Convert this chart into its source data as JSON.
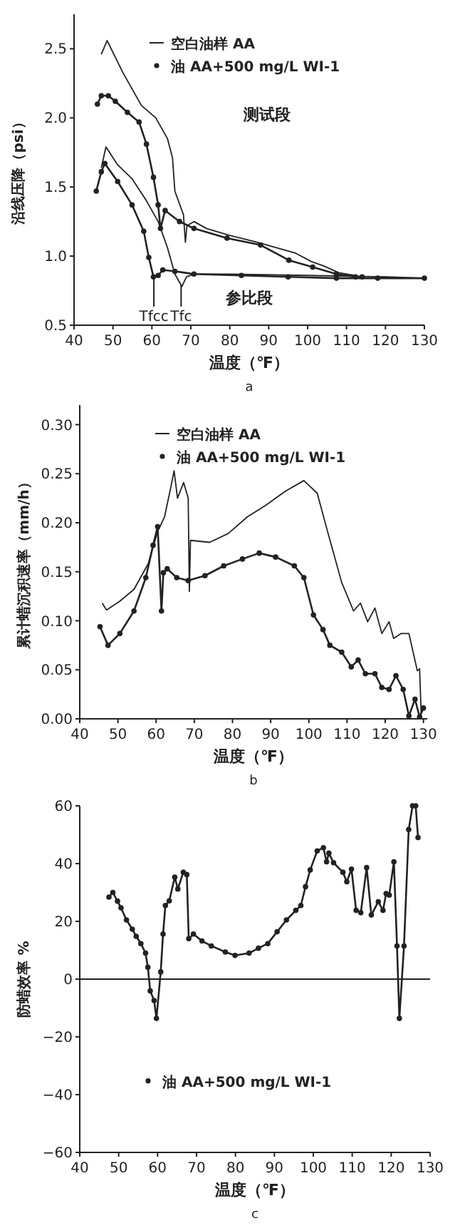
{
  "chart_data": [
    {
      "type": "line",
      "xlabel": "温度（℉）",
      "ylabel": "沿线压降（psi）",
      "legend": "top",
      "grid": false,
      "xlim": [
        40,
        130
      ],
      "ylim": [
        0.5,
        2.75
      ],
      "xticks": [
        40,
        50,
        60,
        70,
        80,
        90,
        100,
        110,
        120,
        130
      ],
      "yticks": [
        {
          "value": 0.5,
          "label": "0.5"
        },
        {
          "value": 1,
          "label": "1.0"
        },
        {
          "value": 1.5,
          "label": "1.5"
        },
        {
          "value": 2,
          "label": "2.0"
        },
        {
          "value": 2.5,
          "label": "2.5"
        }
      ],
      "annotations": [
        "测试段",
        "参比段",
        "a"
      ],
      "ref_lines": [
        {
          "axis": "x",
          "value": 60.5,
          "label": "Tfcc"
        },
        {
          "axis": "x",
          "value": 67.5,
          "label": "Tfc"
        }
      ],
      "series": [
        {
          "name": "空白油样 AA",
          "color": "#222222",
          "marker": "none",
          "x": [
            47,
            48.5,
            52.5,
            57.3,
            61,
            64,
            65.3,
            65.9,
            68.1,
            68.6,
            69,
            70.8,
            74,
            80,
            87,
            92,
            97,
            101,
            104,
            108,
            112
          ],
          "values": [
            2.46,
            2.56,
            2.33,
            2.09,
            2,
            1.85,
            1.71,
            1.47,
            1.3,
            1.1,
            1.22,
            1.25,
            1.2,
            1.15,
            1.1,
            1.06,
            1.02,
            0.96,
            0.93,
            0.88,
            0.86
          ]
        },
        {
          "name": "油 AA+500 mg/L WI-1",
          "color": "#222222",
          "marker": "circle",
          "x": [
            46,
            47,
            48.8,
            50.6,
            53.7,
            56.7,
            58.6,
            60.4,
            61.6,
            62.2,
            63.4,
            67.1,
            70.8,
            79.3,
            87.9,
            95.2,
            101.3,
            107.4,
            112.3,
            114
          ],
          "values": [
            2.1,
            2.16,
            2.16,
            2.12,
            2.04,
            1.97,
            1.81,
            1.57,
            1.37,
            1.2,
            1.33,
            1.25,
            1.2,
            1.13,
            1.08,
            0.97,
            0.92,
            0.87,
            0.85,
            0.85
          ]
        },
        {
          "color": "#222222",
          "marker": "none",
          "x": [
            47,
            48.2,
            51.2,
            54.9,
            58.6,
            61.6,
            64,
            65.9,
            67.7,
            68.9,
            70.8,
            80,
            100,
            120,
            130
          ],
          "values": [
            1.64,
            1.79,
            1.66,
            1.56,
            1.4,
            1.25,
            1.06,
            0.87,
            0.78,
            0.85,
            0.87,
            0.87,
            0.86,
            0.85,
            0.84
          ]
        },
        {
          "color": "#222222",
          "marker": "circle",
          "x": [
            45.7,
            47,
            47.9,
            51.2,
            54.9,
            57.9,
            59.2,
            60.4,
            61.6,
            62.8,
            65.9,
            70.8,
            83,
            95,
            107.4,
            118,
            130
          ],
          "values": [
            1.47,
            1.61,
            1.67,
            1.54,
            1.37,
            1.18,
            0.99,
            0.85,
            0.86,
            0.9,
            0.89,
            0.87,
            0.86,
            0.85,
            0.84,
            0.84,
            0.84
          ]
        }
      ]
    },
    {
      "type": "line",
      "xlabel": "温度（℉）",
      "ylabel": "累计蜡沉积速率（mm/h）",
      "legend": "top",
      "grid": false,
      "xlim": [
        40,
        131
      ],
      "ylim": [
        0,
        0.32
      ],
      "xticks": [
        40,
        50,
        60,
        70,
        80,
        90,
        100,
        110,
        120,
        130
      ],
      "yticks": [
        {
          "value": 0,
          "label": "0.00"
        },
        {
          "value": 0.05,
          "label": "0.05"
        },
        {
          "value": 0.1,
          "label": "0.10"
        },
        {
          "value": 0.15,
          "label": "0.15"
        },
        {
          "value": 0.2,
          "label": "0.20"
        },
        {
          "value": 0.25,
          "label": "0.25"
        },
        {
          "value": 0.3,
          "label": "0.30"
        }
      ],
      "annotations": [
        "b"
      ],
      "series": [
        {
          "name": "空白油样 AA",
          "color": "#222222",
          "marker": "none",
          "x": [
            45.9,
            47,
            50.5,
            54.2,
            57.9,
            60.4,
            62.2,
            63.9,
            64.7,
            65.6,
            67.2,
            68.4,
            68.7,
            69,
            74,
            78.9,
            83.9,
            88.8,
            93.8,
            98.7,
            102.2,
            104.9,
            108.6,
            111.7,
            113.5,
            115.4,
            117.3,
            119.1,
            121,
            122.2,
            124.1,
            126.2,
            128.4,
            129,
            129.4
          ],
          "values": [
            0.118,
            0.111,
            0.12,
            0.132,
            0.158,
            0.191,
            0.206,
            0.237,
            0.253,
            0.225,
            0.241,
            0.225,
            0.13,
            0.182,
            0.18,
            0.189,
            0.206,
            0.218,
            0.232,
            0.243,
            0.23,
            0.191,
            0.139,
            0.11,
            0.118,
            0.099,
            0.113,
            0.087,
            0.099,
            0.082,
            0.087,
            0.087,
            0.049,
            0.051,
            0.006
          ]
        },
        {
          "name": "油 AA+500 mg/L WI-1",
          "color": "#222222",
          "marker": "circle",
          "x": [
            45.3,
            47.4,
            50.5,
            54.2,
            57.3,
            59.2,
            60.4,
            61.4,
            61.9,
            62.9,
            65.4,
            68.4,
            72.8,
            77.7,
            82.6,
            87,
            91.3,
            96.2,
            98.7,
            101.2,
            103.7,
            105.5,
            108.6,
            111.1,
            112.9,
            114.8,
            117.3,
            119.1,
            121,
            122.8,
            124.7,
            126.2,
            127.8,
            129,
            130
          ],
          "values": [
            0.094,
            0.075,
            0.087,
            0.11,
            0.144,
            0.177,
            0.196,
            0.11,
            0.149,
            0.153,
            0.144,
            0.141,
            0.146,
            0.156,
            0.163,
            0.169,
            0.165,
            0.156,
            0.144,
            0.106,
            0.091,
            0.075,
            0.068,
            0.053,
            0.06,
            0.046,
            0.046,
            0.032,
            0.03,
            0.044,
            0.03,
            0.003,
            0.02,
            0.002,
            0.011
          ]
        }
      ]
    },
    {
      "type": "line",
      "xlabel": "温度（℉）",
      "ylabel": "防蜡效率  %",
      "legend": "bottom",
      "grid": false,
      "xlim": [
        40,
        130
      ],
      "ylim": [
        -60,
        60
      ],
      "xticks": [
        40,
        50,
        60,
        70,
        80,
        90,
        100,
        110,
        120,
        130
      ],
      "yticks": [
        {
          "value": -60,
          "label": "−60"
        },
        {
          "value": -40,
          "label": "−40"
        },
        {
          "value": -20,
          "label": "−20"
        },
        0,
        20,
        40,
        60
      ],
      "annotations": [
        "c"
      ],
      "ref_lines": [
        {
          "axis": "y",
          "value": 0
        }
      ],
      "series": [
        {
          "name": "油 AA+500 mg/L  WI-1",
          "color": "#222222",
          "marker": "circle",
          "x": [
            47.5,
            48.5,
            49.7,
            50.6,
            52,
            53.5,
            54.5,
            55.7,
            56.9,
            57.5,
            58.1,
            59.1,
            59.7,
            60.8,
            61.4,
            62,
            63,
            64.4,
            65.2,
            66.6,
            67.5,
            68,
            69.2,
            71.4,
            73.8,
            77.4,
            79.9,
            83.5,
            85.9,
            88.3,
            90.7,
            93.1,
            95.5,
            96.8,
            98,
            99.2,
            101,
            102.6,
            103.4,
            104,
            105.2,
            107.6,
            108.6,
            109.8,
            111,
            112.2,
            113.7,
            114.9,
            116.7,
            117.9,
            118.7,
            119.5,
            120.7,
            121.5,
            122.1,
            123.3,
            124.5,
            125.5,
            126.3,
            126.9
          ],
          "values": [
            28.4,
            30,
            27,
            24.7,
            20.5,
            17.3,
            14.8,
            12.3,
            9,
            4.1,
            -4.1,
            -7.4,
            -13.6,
            2.5,
            15.6,
            25.5,
            27.1,
            35.3,
            31.2,
            37,
            36.2,
            14,
            15.6,
            13.2,
            11.5,
            9.4,
            8.2,
            9,
            10.7,
            12.3,
            16.4,
            20.5,
            23.8,
            25.5,
            32,
            37.8,
            44.4,
            45.5,
            40.6,
            43.6,
            40.3,
            37,
            33.7,
            38.1,
            23.8,
            23,
            38.6,
            22.2,
            26.8,
            23.8,
            29.6,
            29.1,
            40.6,
            11.5,
            -13.6,
            11.5,
            51.8,
            60,
            60,
            49
          ]
        }
      ]
    }
  ]
}
